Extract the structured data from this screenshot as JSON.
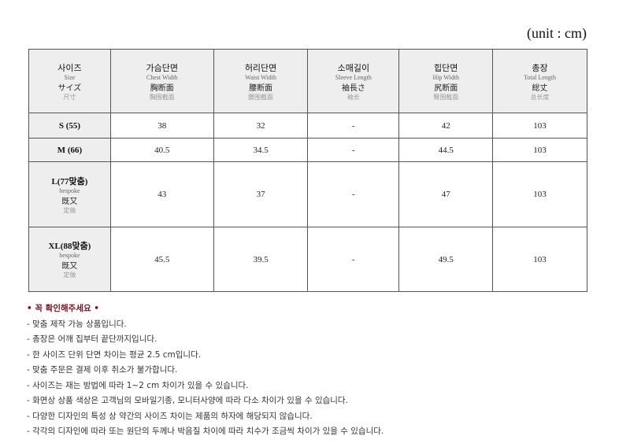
{
  "unit": "(unit : cm)",
  "headers": [
    {
      "ko": "사이즈",
      "en": "Size",
      "ja": "サイズ",
      "zh": "尺寸"
    },
    {
      "ko": "가슴단면",
      "en": "Chest Width",
      "ja": "胸断面",
      "zh": "胸围截面"
    },
    {
      "ko": "허리단면",
      "en": "Waist Width",
      "ja": "腰断面",
      "zh": "腰围截面"
    },
    {
      "ko": "소매길이",
      "en": "Sleeve Length",
      "ja": "袖長さ",
      "zh": "袖长"
    },
    {
      "ko": "힙단면",
      "en": "Hip Width",
      "ja": "尻断面",
      "zh": "臀围截面"
    },
    {
      "ko": "총장",
      "en": "Total Length",
      "ja": "総丈",
      "zh": "总长度"
    }
  ],
  "rows": [
    {
      "size": "S (55)",
      "sub": [],
      "values": [
        "38",
        "32",
        "-",
        "42",
        "103"
      ]
    },
    {
      "size": "M (66)",
      "sub": [],
      "values": [
        "40.5",
        "34.5",
        "-",
        "44.5",
        "103"
      ]
    },
    {
      "size": "L(77맞춤)",
      "sub": [
        "bespoke",
        "既又",
        "定做"
      ],
      "values": [
        "43",
        "37",
        "-",
        "47",
        "103"
      ]
    },
    {
      "size": "XL(88맞춤)",
      "sub": [
        "bespoke",
        "既又",
        "定做"
      ],
      "values": [
        "45.5",
        "39.5",
        "-",
        "49.5",
        "103"
      ]
    }
  ],
  "notes": {
    "title": "• 꼭 확인해주세요 •",
    "items": [
      "- 맞춤 제작 가능 상품입니다.",
      "- 총장은 어깨 집부터 끝단까지입니다.",
      "- 한 사이즈 단위 단면 차이는 평균 2.5 cm입니다.",
      "- 맞춤 주문은 결제 이후 취소가 불가합니다.",
      "- 사이즈는 재는 방법에 따라 1~2 cm 차이가 있을 수 있습니다.",
      "- 화면상 상품 색상은 고객님의 모바일기종, 모니터사양에 따라 다소 차이가 있을 수 있습니다.",
      "- 다양한 디자인의 특성 상 약간의 사이즈 차이는 제품의 하자에 해당되지 않습니다.",
      "- 각각의 디자인에 따라 또는 원단의 두께나 박음질 차이에 따라 치수가 조금씩 차이가 있을 수 있습니다."
    ]
  }
}
